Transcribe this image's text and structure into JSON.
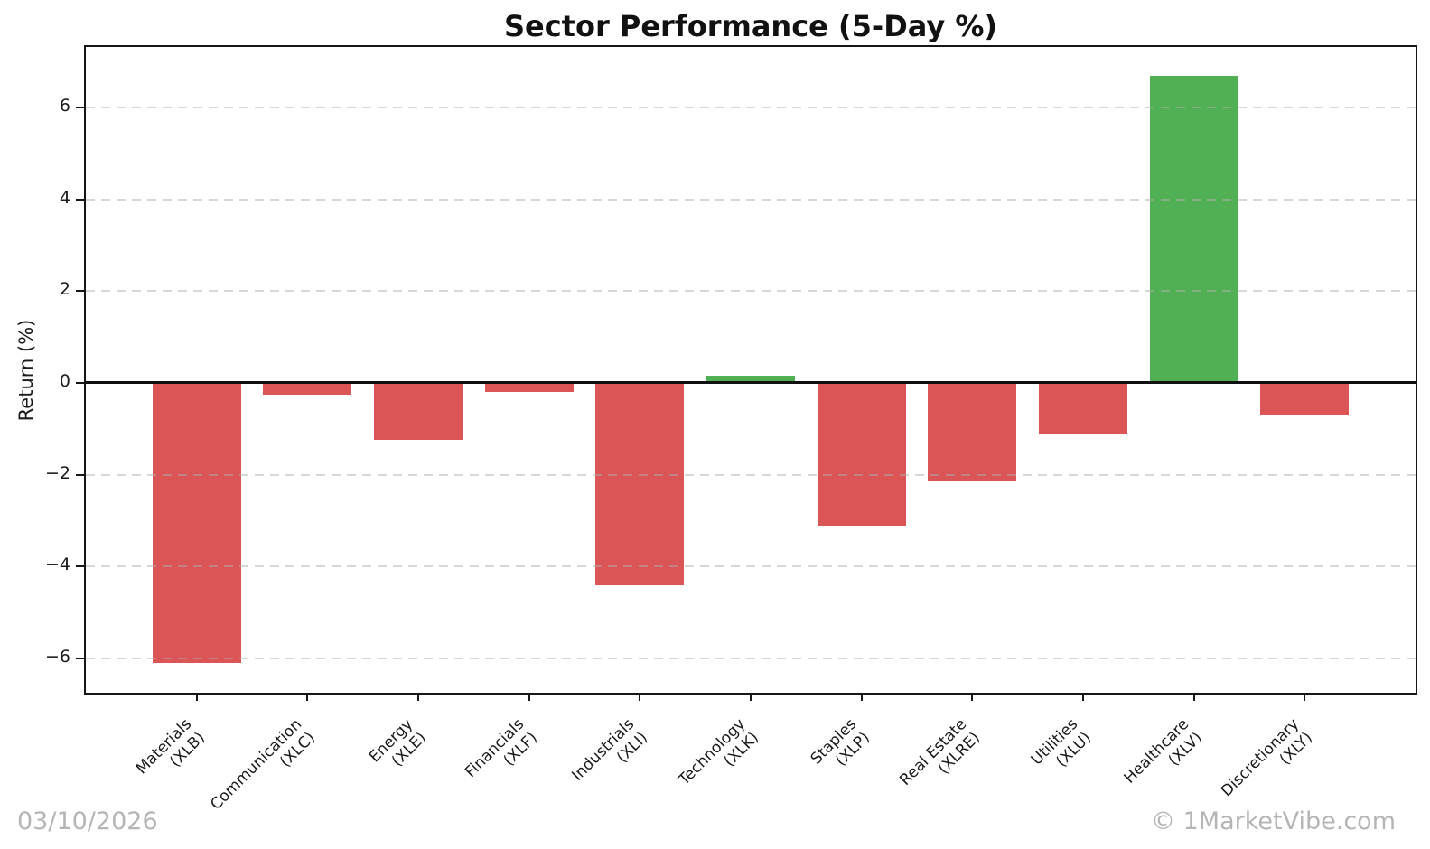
{
  "title": "Sector Performance (5-Day %)",
  "y_axis_label": "Return (%)",
  "footer": {
    "date": "03/10/2026",
    "copyright": "© 1MarketVibe.com"
  },
  "chart_data": {
    "type": "bar",
    "title": "Sector Performance (5-Day %)",
    "xlabel": "",
    "ylabel": "Return (%)",
    "categories": [
      {
        "name": "Materials",
        "ticker": "(XLB)"
      },
      {
        "name": "Communication",
        "ticker": "(XLC)"
      },
      {
        "name": "Energy",
        "ticker": "(XLE)"
      },
      {
        "name": "Financials",
        "ticker": "(XLF)"
      },
      {
        "name": "Industrials",
        "ticker": "(XLI)"
      },
      {
        "name": "Technology",
        "ticker": "(XLK)"
      },
      {
        "name": "Staples",
        "ticker": "(XLP)"
      },
      {
        "name": "Real Estate",
        "ticker": "(XLRE)"
      },
      {
        "name": "Utilities",
        "ticker": "(XLU)"
      },
      {
        "name": "Healthcare",
        "ticker": "(XLV)"
      },
      {
        "name": "Discretionary",
        "ticker": "(XLY)"
      }
    ],
    "values": [
      -6.1,
      -0.25,
      -1.25,
      -0.2,
      -4.4,
      0.15,
      -3.1,
      -2.15,
      -1.1,
      6.7,
      -0.7
    ],
    "units": "percent",
    "ylim": [
      -6.75,
      7.32
    ],
    "yticks": [
      6,
      4,
      2,
      0,
      -2,
      -4,
      -6
    ],
    "ytick_labels": [
      "6",
      "4",
      "2",
      "0",
      "−2",
      "−4",
      "−6"
    ],
    "grid": "horizontal-dashed",
    "zero_line": true,
    "legend": "none",
    "bar_width_fraction": 0.8,
    "colors": {
      "positive": "#52b054",
      "negative": "#db5456",
      "grid": "#b0b0b0",
      "axis": "#161616",
      "corner_text": "#b5b5b5"
    }
  }
}
